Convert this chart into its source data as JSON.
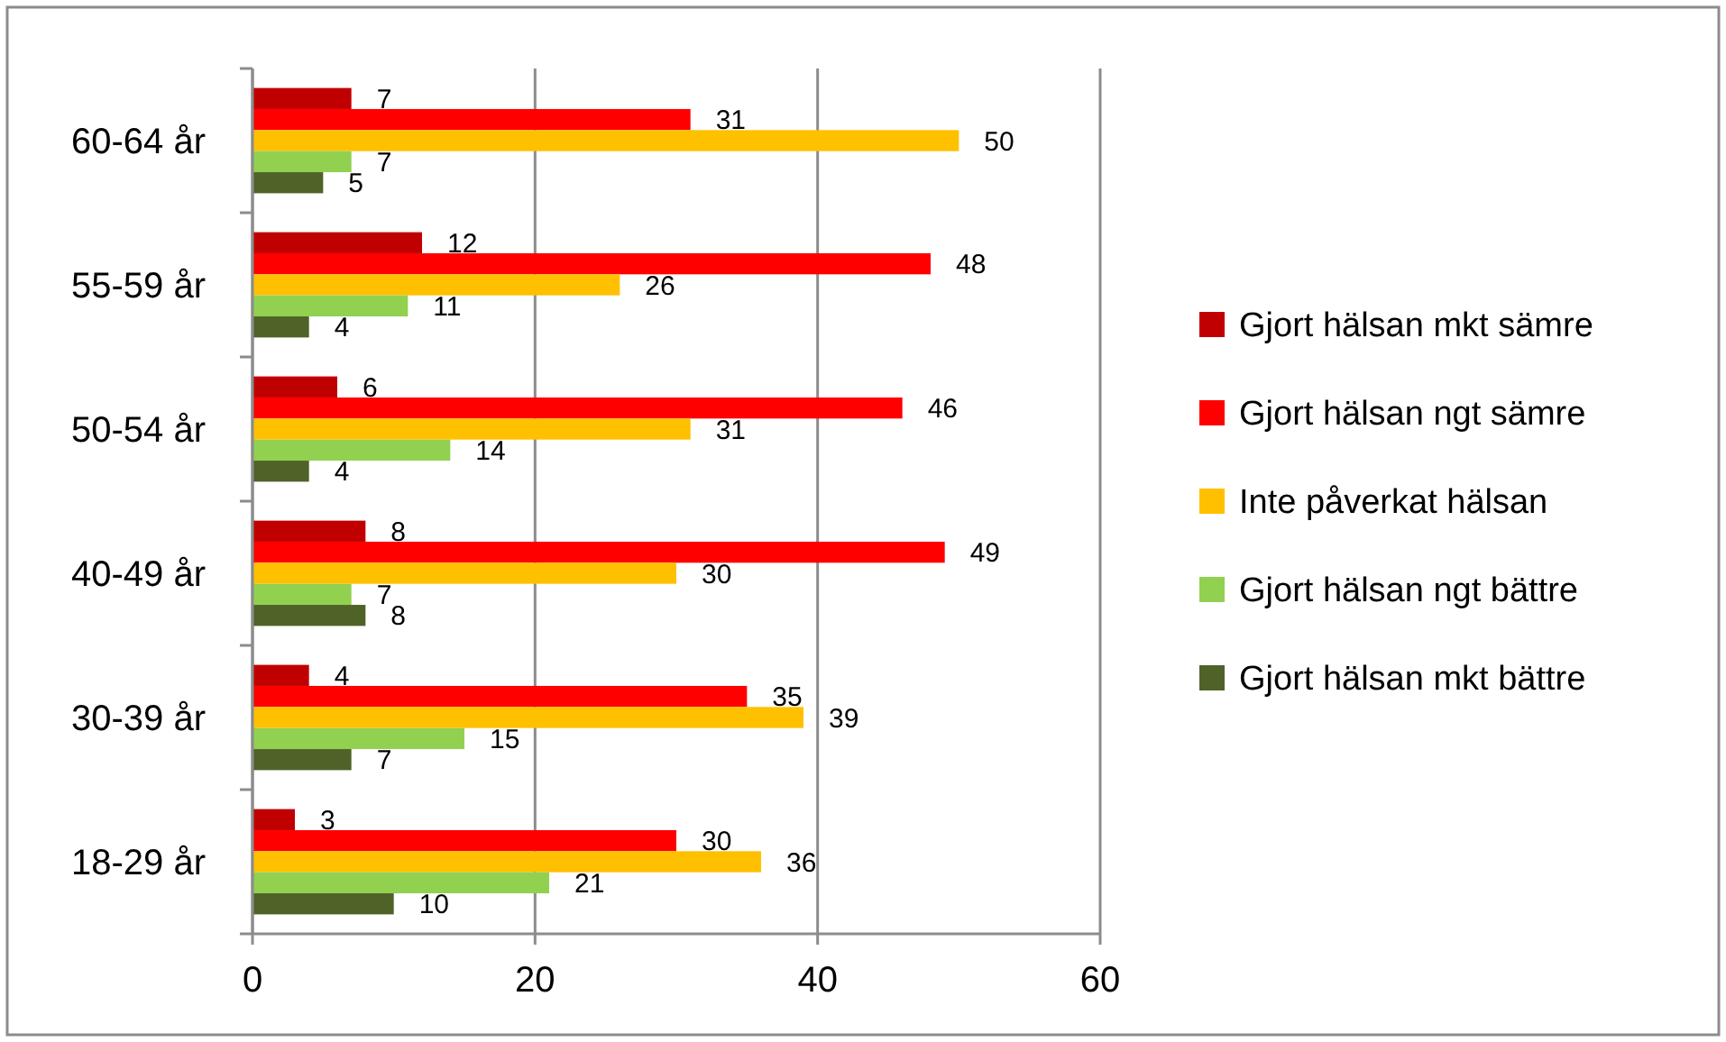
{
  "chart_data": {
    "type": "bar",
    "orientation": "horizontal",
    "categories": [
      "60-64 år",
      "55-59 år",
      "50-54 år",
      "40-49 år",
      "30-39 år",
      "18-29 år"
    ],
    "series": [
      {
        "name": "Gjort hälsan mkt sämre",
        "color": "#c00000",
        "values": [
          7,
          12,
          6,
          8,
          4,
          3
        ]
      },
      {
        "name": "Gjort hälsan ngt sämre",
        "color": "#ff0000",
        "values": [
          31,
          48,
          46,
          49,
          35,
          30
        ]
      },
      {
        "name": "Inte påverkat hälsan",
        "color": "#ffc000",
        "values": [
          50,
          26,
          31,
          30,
          39,
          36
        ]
      },
      {
        "name": "Gjort hälsan ngt bättre",
        "color": "#92d050",
        "values": [
          7,
          11,
          14,
          7,
          15,
          21
        ]
      },
      {
        "name": "Gjort hälsan mkt bättre",
        "color": "#4f6228",
        "values": [
          5,
          4,
          4,
          8,
          7,
          10
        ]
      }
    ],
    "xlim": [
      0,
      60
    ],
    "xticks": [
      0,
      20,
      40,
      60
    ],
    "grid": "x",
    "legend": "right",
    "data_labels": true
  }
}
